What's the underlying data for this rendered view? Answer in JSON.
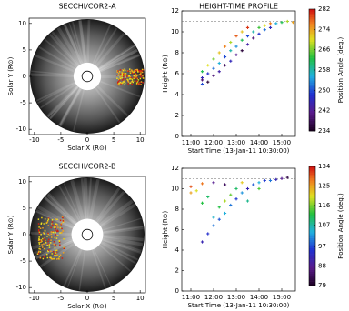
{
  "chart_data": [
    {
      "type": "image",
      "title": "SECCHI/COR2-A",
      "xlabel": "Solar X (R⊙)",
      "ylabel": "Solar Y (R⊙)",
      "xlim": [
        -11,
        11
      ],
      "xticks": [
        -10,
        -5,
        0,
        5,
        10
      ],
      "ylim": [
        -11,
        11
      ],
      "yticks": [
        -10,
        -5,
        0,
        5,
        10
      ]
    },
    {
      "type": "scatter",
      "title": "HEIGHT-TIME PROFILE",
      "xlabel": "Start Time (13-Jan-11 10:30:00)",
      "ylabel": "Height (R⊙)",
      "xlim": [
        10.6,
        15.6
      ],
      "xticks": [
        {
          "value": 11,
          "label": "11:00"
        },
        {
          "value": 12,
          "label": "12:00"
        },
        {
          "value": 13,
          "label": "13:00"
        },
        {
          "value": 14,
          "label": "14:00"
        },
        {
          "value": 15,
          "label": "15:00"
        }
      ],
      "ylim": [
        0,
        12
      ],
      "yticks": [
        0,
        2,
        4,
        6,
        8,
        10,
        12
      ],
      "ref_lines": [
        11,
        3
      ],
      "series": [
        {
          "x": [
            11.5,
            11.5,
            11.5,
            11.5,
            11.75,
            11.75,
            11.75,
            12,
            12,
            12,
            12.25,
            12.25,
            12.25,
            12.5,
            12.5,
            12.5,
            12.75,
            12.75,
            12.75,
            13,
            13,
            13,
            13.25,
            13.25,
            13.25,
            13.5,
            13.5,
            13.5,
            13.75,
            13.75,
            14,
            14,
            14.25,
            14.25,
            14.5,
            14.5,
            14.75,
            15,
            15.25,
            15.5
          ],
          "values": [
            5.0,
            5.6,
            5.4,
            6.2,
            6.0,
            6.8,
            5.2,
            6.5,
            7.4,
            5.8,
            7.0,
            8.0,
            6.2,
            7.6,
            8.6,
            6.8,
            8.2,
            9.0,
            7.2,
            8.6,
            9.6,
            7.8,
            9.2,
            10.0,
            8.2,
            9.6,
            10.4,
            8.8,
            10.0,
            9.4,
            10.4,
            9.8,
            10.6,
            10.2,
            10.8,
            10.4,
            10.8,
            10.9,
            11.0,
            10.9
          ],
          "c": [
            250,
            246,
            240,
            262,
            248,
            270,
            236,
            252,
            266,
            240,
            256,
            272,
            244,
            250,
            276,
            238,
            258,
            268,
            246,
            254,
            278,
            242,
            262,
            272,
            236,
            250,
            280,
            244,
            258,
            240,
            264,
            248,
            270,
            252,
            276,
            246,
            256,
            262,
            268,
            274
          ]
        }
      ],
      "colorbar": {
        "label": "Position Angle (deg.)",
        "lim": [
          234,
          282
        ],
        "ticks": [
          234,
          242,
          250,
          258,
          266,
          274,
          282
        ]
      }
    },
    {
      "type": "image",
      "title": "SECCHI/COR2-B",
      "xlabel": "Solar X (R⊙)",
      "ylabel": "Solar Y (R⊙)",
      "xlim": [
        -11,
        11
      ],
      "xticks": [
        -10,
        -5,
        0,
        5,
        10
      ],
      "ylim": [
        -11,
        11
      ],
      "yticks": [
        -10,
        -5,
        0,
        5,
        10
      ]
    },
    {
      "type": "scatter",
      "xlabel": "Start Time (13-Jan-11 10:30:00)",
      "ylabel": "Height (R⊙)",
      "xlim": [
        10.6,
        15.6
      ],
      "xticks": [
        {
          "value": 11,
          "label": "11:00"
        },
        {
          "value": 12,
          "label": "12:00"
        },
        {
          "value": 13,
          "label": "13:00"
        },
        {
          "value": 14,
          "label": "14:00"
        },
        {
          "value": 15,
          "label": "15:00"
        }
      ],
      "ylim": [
        0,
        12
      ],
      "yticks": [
        0,
        2,
        4,
        6,
        8,
        10,
        12
      ],
      "ref_lines": [
        11,
        4.4
      ],
      "series": [
        {
          "x": [
            11,
            11,
            11.25,
            11.5,
            11.5,
            11.5,
            11.75,
            11.75,
            12,
            12,
            12,
            12.25,
            12.25,
            12.5,
            12.5,
            12.5,
            12.75,
            12.75,
            13,
            13,
            13.25,
            13.25,
            13.5,
            13.5,
            13.75,
            14,
            14,
            14.25,
            14.5,
            14.75,
            15,
            15.25
          ],
          "values": [
            9.6,
            10.2,
            9.8,
            10.5,
            8.6,
            4.8,
            5.6,
            9.2,
            6.4,
            10.6,
            7.2,
            7.0,
            8.2,
            7.6,
            8.8,
            10.4,
            8.4,
            9.4,
            9.0,
            10.0,
            9.6,
            10.6,
            10.0,
            8.8,
            10.4,
            10.6,
            10.0,
            10.8,
            10.8,
            10.9,
            11.0,
            11.1
          ],
          "c": [
            125,
            130,
            120,
            128,
            112,
            92,
            95,
            110,
            100,
            88,
            105,
            98,
            112,
            104,
            118,
            84,
            100,
            115,
            96,
            110,
            102,
            122,
            92,
            108,
            98,
            104,
            114,
            96,
            100,
            92,
            88,
            82
          ]
        }
      ],
      "colorbar": {
        "label": "Position Angle (deg.)",
        "lim": [
          79,
          134
        ],
        "ticks": [
          79,
          88,
          97,
          107,
          116,
          125,
          134
        ]
      }
    }
  ]
}
